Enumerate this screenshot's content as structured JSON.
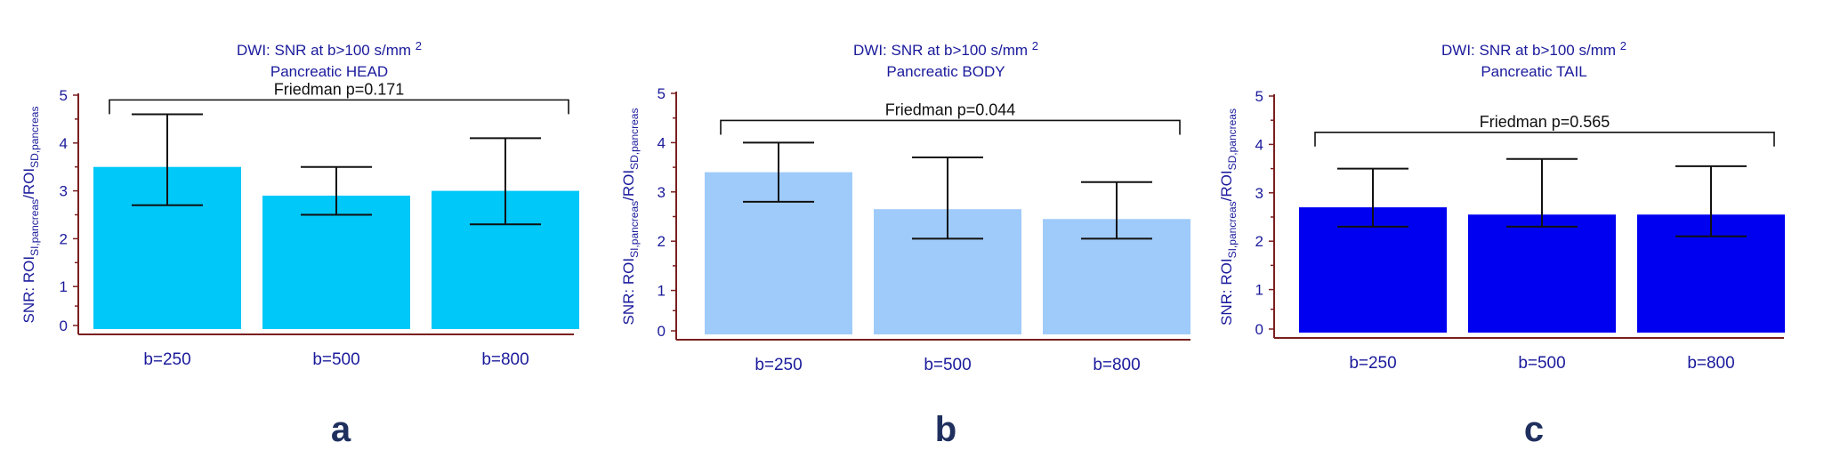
{
  "figure": {
    "panels": [
      {
        "letter": "a",
        "title_line1": "DWI: SNR at b>100 s/mm",
        "title_sup": "2",
        "title_line2": "Pancreatic HEAD",
        "friedman": "Friedman p=0.171",
        "ylabel": {
          "prefix": "SNR: ROI",
          "sub1": "SI,pancreas",
          "mid": "/ROI",
          "sub2": "SD,pancreas"
        },
        "color": "#00c8f8"
      },
      {
        "letter": "b",
        "title_line1": "DWI: SNR at b>100 s/mm",
        "title_sup": "2",
        "title_line2": "Pancreatic BODY",
        "friedman": "Friedman p=0.044",
        "ylabel": {
          "prefix": "SNR: ROI",
          "sub1": "SI,pancreas",
          "mid": "/ROI",
          "sub2": "SD,pancreas"
        },
        "color": "#9fcbfa"
      },
      {
        "letter": "c",
        "title_line1": "DWI: SNR at b>100 s/mm",
        "title_sup": "2",
        "title_line2": "Pancreatic TAIL",
        "friedman": "Friedman p=0.565",
        "ylabel": {
          "prefix": "SNR: ROI",
          "sub1": "SI,pancreas",
          "mid": "/ROI",
          "sub2": "SD,pancreas"
        },
        "color": "#0000f0"
      }
    ]
  },
  "chart_data": [
    {
      "type": "bar",
      "title": "DWI: SNR at b>100 s/mm2 Pancreatic HEAD",
      "xlabel": "",
      "ylabel": "SNR: ROI SI,pancreas / ROI SD,pancreas",
      "categories": [
        "b=250",
        "b=500",
        "b=800"
      ],
      "values": [
        3.5,
        2.9,
        3.0
      ],
      "error_low": [
        2.7,
        2.5,
        2.3
      ],
      "error_high": [
        4.6,
        3.5,
        4.1
      ],
      "ylim": [
        0,
        5
      ],
      "yticks": [
        "0",
        "1",
        "2",
        "3",
        "4",
        "5"
      ],
      "bracket_y": 4.9,
      "annotation": "Friedman p=0.171"
    },
    {
      "type": "bar",
      "title": "DWI: SNR at b>100 s/mm2 Pancreatic BODY",
      "xlabel": "",
      "ylabel": "SNR: ROI SI,pancreas / ROI SD,pancreas",
      "categories": [
        "b=250",
        "b=500",
        "b=800"
      ],
      "values": [
        3.4,
        2.65,
        2.45
      ],
      "error_low": [
        2.8,
        2.05,
        2.05
      ],
      "error_high": [
        4.0,
        3.7,
        3.2
      ],
      "ylim": [
        0,
        5
      ],
      "yticks": [
        "0",
        "1",
        "2",
        "3",
        "4",
        "5"
      ],
      "bracket_y": 4.45,
      "annotation": "Friedman p=0.044"
    },
    {
      "type": "bar",
      "title": "DWI: SNR at b>100 s/mm2 Pancreatic TAIL",
      "xlabel": "",
      "ylabel": "SNR: ROI SI,pancreas / ROI SD,pancreas",
      "categories": [
        "b=250",
        "b=500",
        "b=800"
      ],
      "values": [
        2.7,
        2.55,
        2.55
      ],
      "error_low": [
        2.3,
        2.3,
        2.1
      ],
      "error_high": [
        3.5,
        3.7,
        3.55
      ],
      "ylim": [
        0,
        5
      ],
      "yticks": [
        "0",
        "1",
        "2",
        "3",
        "4",
        "5"
      ],
      "bracket_y": 4.25,
      "annotation": "Friedman p=0.565"
    }
  ]
}
